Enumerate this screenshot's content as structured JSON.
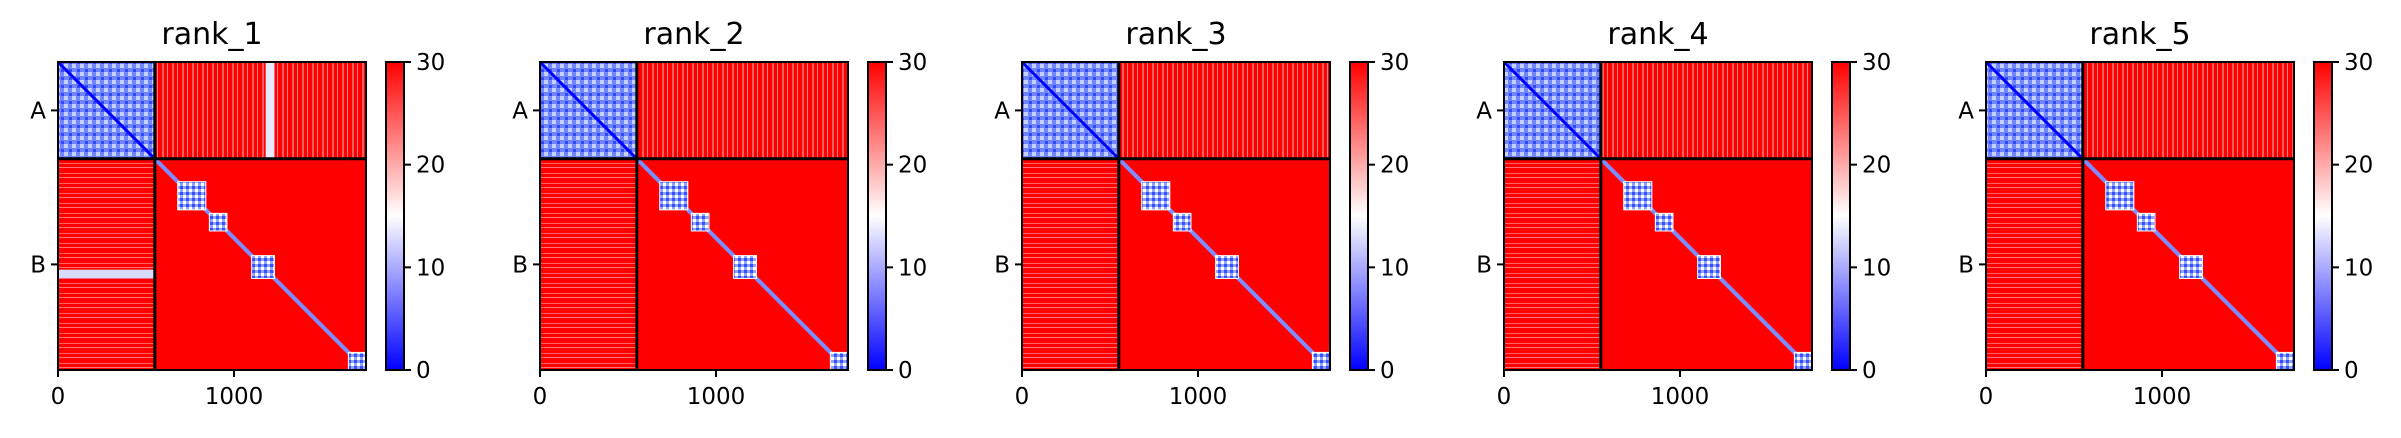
{
  "chart_data": [
    {
      "type": "heatmap",
      "title": "rank_1",
      "xticks": [
        "0",
        "1000"
      ],
      "yticks": [
        "A",
        "B"
      ],
      "colorbar": {
        "ticks": [
          "0",
          "10",
          "20",
          "30"
        ],
        "range": [
          0,
          30
        ]
      },
      "axis_range": [
        0,
        1750
      ],
      "chain_boundary": 550,
      "diagonal_domains": [
        [
          680,
          840
        ],
        [
          860,
          960
        ],
        [
          1100,
          1230
        ],
        [
          1650,
          1750
        ]
      ],
      "high_contrast_stripe": {
        "y_range": [
          1180,
          1230
        ],
        "x_range": [
          0,
          550
        ]
      }
    },
    {
      "type": "heatmap",
      "title": "rank_2",
      "xticks": [
        "0",
        "1000"
      ],
      "yticks": [
        "A",
        "B"
      ],
      "colorbar": {
        "ticks": [
          "0",
          "10",
          "20",
          "30"
        ],
        "range": [
          0,
          30
        ]
      },
      "axis_range": [
        0,
        1750
      ],
      "chain_boundary": 550,
      "diagonal_domains": [
        [
          680,
          840
        ],
        [
          860,
          960
        ],
        [
          1100,
          1230
        ],
        [
          1650,
          1750
        ]
      ]
    },
    {
      "type": "heatmap",
      "title": "rank_3",
      "xticks": [
        "0",
        "1000"
      ],
      "yticks": [
        "A",
        "B"
      ],
      "colorbar": {
        "ticks": [
          "0",
          "10",
          "20",
          "30"
        ],
        "range": [
          0,
          30
        ]
      },
      "axis_range": [
        0,
        1750
      ],
      "chain_boundary": 550,
      "diagonal_domains": [
        [
          680,
          840
        ],
        [
          860,
          960
        ],
        [
          1100,
          1230
        ],
        [
          1650,
          1750
        ]
      ]
    },
    {
      "type": "heatmap",
      "title": "rank_4",
      "xticks": [
        "0",
        "1000"
      ],
      "yticks": [
        "A",
        "B"
      ],
      "colorbar": {
        "ticks": [
          "0",
          "10",
          "20",
          "30"
        ],
        "range": [
          0,
          30
        ]
      },
      "axis_range": [
        0,
        1750
      ],
      "chain_boundary": 550,
      "diagonal_domains": [
        [
          680,
          840
        ],
        [
          860,
          960
        ],
        [
          1100,
          1230
        ],
        [
          1650,
          1750
        ]
      ]
    },
    {
      "type": "heatmap",
      "title": "rank_5",
      "xticks": [
        "0",
        "1000"
      ],
      "yticks": [
        "A",
        "B"
      ],
      "colorbar": {
        "ticks": [
          "0",
          "10",
          "20",
          "30"
        ],
        "range": [
          0,
          30
        ]
      },
      "axis_range": [
        0,
        1750
      ],
      "chain_boundary": 550,
      "diagonal_domains": [
        [
          680,
          840
        ],
        [
          860,
          960
        ],
        [
          1100,
          1230
        ],
        [
          1650,
          1750
        ]
      ]
    }
  ],
  "colors": {
    "low": "#0000ff",
    "mid": "#ffffff",
    "high": "#ff0000"
  }
}
